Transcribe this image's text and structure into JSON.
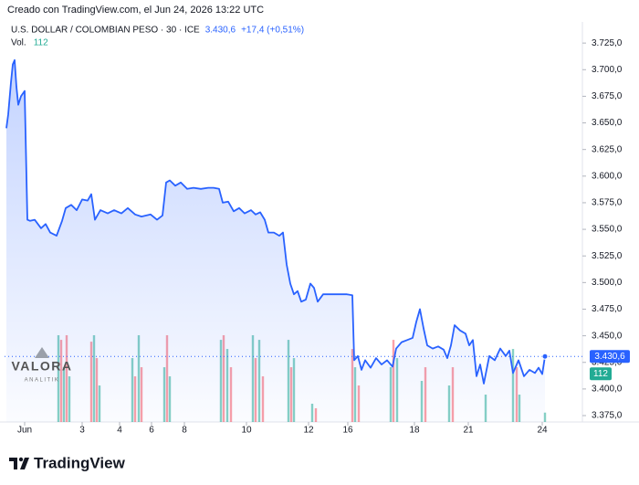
{
  "chart_data": {
    "type": "line",
    "credit": "Creado con TradingView.com, el Jun 24, 2026 13:22 UTC",
    "header": {
      "symbol": "U.S. DOLLAR / COLOMBIAN PESO · 30 · ICE",
      "price": "3.430,6",
      "change": "+17,4 (+0,51%)",
      "volume_label": "Vol."
    },
    "watermark": {
      "title": "VALORA",
      "subtitle": "ANALITIK"
    },
    "brand": "TradingView",
    "xlim": [
      0,
      633
    ],
    "xticks": [
      {
        "value": 22,
        "label": "Jun"
      },
      {
        "value": 85,
        "label": "3"
      },
      {
        "value": 126,
        "label": "4"
      },
      {
        "value": 161,
        "label": "6"
      },
      {
        "value": 197,
        "label": "8"
      },
      {
        "value": 265,
        "label": "10"
      },
      {
        "value": 333,
        "label": "12"
      },
      {
        "value": 376,
        "label": "16"
      },
      {
        "value": 449,
        "label": "18"
      },
      {
        "value": 508,
        "label": "21"
      },
      {
        "value": 589,
        "label": "24"
      }
    ],
    "ylim": [
      3369,
      3738
    ],
    "yticks": [
      {
        "value": 3375,
        "label": "3.375,0"
      },
      {
        "value": 3400,
        "label": "3.400,0"
      },
      {
        "value": 3425,
        "label": "3.425,0"
      },
      {
        "value": 3450,
        "label": "3.450,0"
      },
      {
        "value": 3475,
        "label": "3.475,0"
      },
      {
        "value": 3500,
        "label": "3.500,0"
      },
      {
        "value": 3525,
        "label": "3.525,0"
      },
      {
        "value": 3550,
        "label": "3.550,0"
      },
      {
        "value": 3575,
        "label": "3.575,0"
      },
      {
        "value": 3600,
        "label": "3.600,0"
      },
      {
        "value": 3625,
        "label": "3.625,0"
      },
      {
        "value": 3650,
        "label": "3.650,0"
      },
      {
        "value": 3675,
        "label": "3.675,0"
      },
      {
        "value": 3700,
        "label": "3.700,0"
      },
      {
        "value": 3725,
        "label": "3.725,0"
      }
    ],
    "series": [
      {
        "color": "#2962ff",
        "x": [
          2,
          4,
          7,
          9,
          11,
          13,
          15,
          18,
          22,
          25,
          28,
          33,
          40,
          45,
          50,
          57,
          63,
          67,
          73,
          79,
          85,
          91,
          95,
          99,
          105,
          113,
          120,
          128,
          135,
          143,
          150,
          160,
          167,
          173,
          177,
          181,
          187,
          193,
          200,
          207,
          215,
          223,
          229,
          235,
          239,
          245,
          251,
          257,
          263,
          270,
          275,
          280,
          285,
          289,
          295,
          301,
          305,
          309,
          313,
          317,
          321,
          325,
          330,
          335,
          339,
          343,
          349,
          355,
          365,
          375,
          381,
          383,
          387,
          391,
          395,
          401,
          407,
          413,
          419,
          425,
          429,
          435,
          441,
          447,
          451,
          455,
          459,
          463,
          469,
          475,
          481,
          485,
          489,
          493,
          499,
          505,
          509,
          513,
          517,
          521,
          525,
          531,
          537,
          543,
          549,
          553,
          557,
          563,
          569,
          575,
          581,
          585,
          589,
          592
        ],
        "values": [
          3645,
          3658,
          3688,
          3705,
          3709,
          3684,
          3667,
          3675,
          3680,
          3559,
          3558,
          3559,
          3551,
          3555,
          3547,
          3544,
          3558,
          3570,
          3573,
          3568,
          3578,
          3577,
          3583,
          3559,
          3568,
          3565,
          3568,
          3565,
          3570,
          3564,
          3562,
          3564,
          3559,
          3563,
          3594,
          3596,
          3591,
          3594,
          3588,
          3589,
          3588,
          3589,
          3589,
          3588,
          3575,
          3576,
          3567,
          3570,
          3565,
          3568,
          3564,
          3566,
          3559,
          3547,
          3547,
          3544,
          3547,
          3517,
          3499,
          3489,
          3492,
          3482,
          3484,
          3499,
          3495,
          3482,
          3489,
          3489,
          3489,
          3489,
          3488,
          3427,
          3431,
          3418,
          3427,
          3420,
          3429,
          3423,
          3427,
          3421,
          3438,
          3444,
          3446,
          3448,
          3463,
          3475,
          3457,
          3441,
          3438,
          3440,
          3437,
          3429,
          3441,
          3460,
          3455,
          3452,
          3441,
          3446,
          3412,
          3423,
          3405,
          3431,
          3427,
          3438,
          3431,
          3436,
          3415,
          3427,
          3412,
          3418,
          3415,
          3420,
          3414,
          3430.6
        ]
      }
    ],
    "volume": {
      "y2lim": [
        0,
        1200
      ],
      "x": [
        59,
        62,
        65,
        68,
        71,
        95,
        98,
        101,
        104,
        140,
        143,
        147,
        150,
        175,
        178,
        181,
        237,
        240,
        244,
        248,
        272,
        275,
        279,
        283,
        311,
        314,
        317,
        337,
        341,
        381,
        384,
        388,
        423,
        426,
        430,
        457,
        461,
        487,
        491,
        527,
        557,
        561,
        564,
        592
      ],
      "values": [
        1036,
        981,
        654,
        1036,
        545,
        959,
        1036,
        763,
        436,
        763,
        545,
        1036,
        654,
        654,
        1036,
        545,
        981,
        1036,
        872,
        654,
        1036,
        763,
        981,
        545,
        981,
        654,
        763,
        218,
        164,
        872,
        654,
        436,
        654,
        981,
        763,
        491,
        654,
        436,
        654,
        327,
        872,
        654,
        327,
        112
      ],
      "colors": [
        "#22ab94",
        "#f7525f",
        "#22ab94",
        "#f7525f",
        "#22ab94",
        "#f7525f",
        "#22ab94",
        "#f7525f",
        "#22ab94",
        "#22ab94",
        "#f7525f",
        "#22ab94",
        "#f7525f",
        "#22ab94",
        "#f7525f",
        "#22ab94",
        "#22ab94",
        "#f7525f",
        "#22ab94",
        "#f7525f",
        "#22ab94",
        "#f7525f",
        "#22ab94",
        "#f7525f",
        "#22ab94",
        "#f7525f",
        "#22ab94",
        "#22ab94",
        "#f7525f",
        "#f7525f",
        "#22ab94",
        "#f7525f",
        "#22ab94",
        "#f7525f",
        "#22ab94",
        "#22ab94",
        "#f7525f",
        "#22ab94",
        "#f7525f",
        "#22ab94",
        "#22ab94",
        "#f7525f",
        "#22ab94",
        "#22ab94"
      ]
    }
  }
}
